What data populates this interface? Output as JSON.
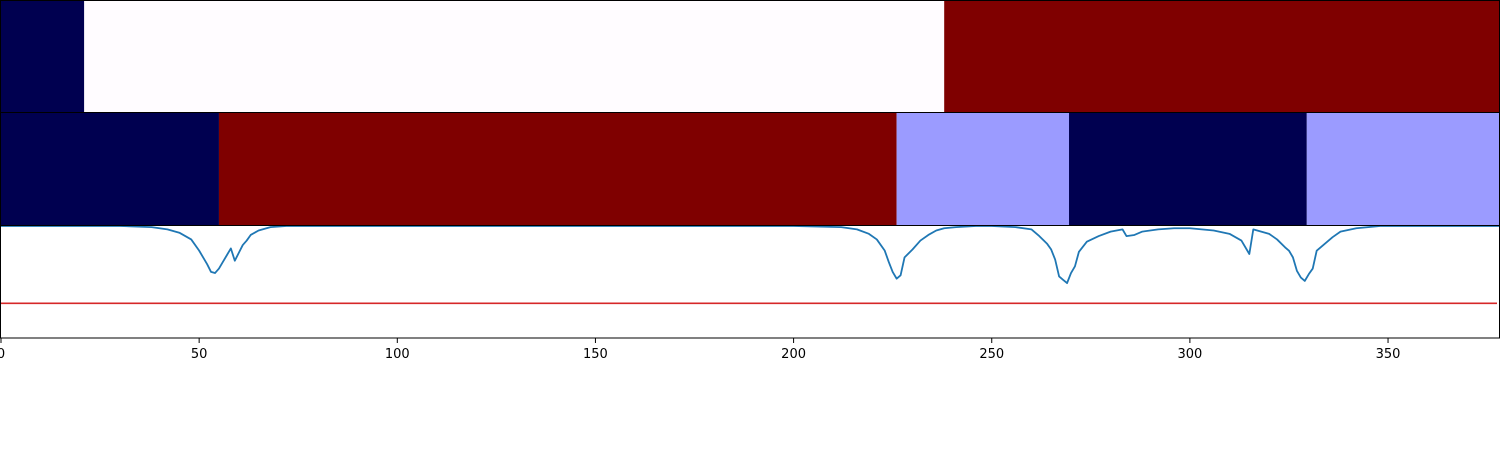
{
  "chart_data": {
    "type": "segmentation-timeline",
    "x_range": [
      0,
      378
    ],
    "x_ticks": [
      0,
      50,
      100,
      150,
      200,
      250,
      300,
      350
    ],
    "x_tick_labels": [
      "0",
      "50",
      "100",
      "150",
      "200",
      "250",
      "300",
      "350"
    ],
    "colors": {
      "dark_navy": "#000050",
      "dark_red": "#7f0000",
      "light_purple": "#9b9bff",
      "white": "#fffcff",
      "line_blue": "#1f77b4",
      "threshold_red": "#d62728"
    },
    "tracks": [
      {
        "segments": [
          {
            "start": 0,
            "end": 21,
            "color": "#000050"
          },
          {
            "start": 21,
            "end": 238,
            "color": "#fffcff"
          },
          {
            "start": 238,
            "end": 378,
            "color": "#7f0000"
          }
        ]
      },
      {
        "segments": [
          {
            "start": 0,
            "end": 55,
            "color": "#000050"
          },
          {
            "start": 55,
            "end": 226,
            "color": "#7f0000"
          },
          {
            "start": 226,
            "end": 269.5,
            "color": "#9b9bff"
          },
          {
            "start": 269.5,
            "end": 329.5,
            "color": "#000050"
          },
          {
            "start": 329.5,
            "end": 378,
            "color": "#9b9bff"
          }
        ]
      }
    ],
    "signal": {
      "y_range": [
        0,
        1
      ],
      "threshold": 0.31,
      "color": "#1f77b4",
      "points": [
        [
          0,
          1.0
        ],
        [
          30,
          1.0
        ],
        [
          38,
          0.99
        ],
        [
          42,
          0.97
        ],
        [
          45,
          0.94
        ],
        [
          48,
          0.88
        ],
        [
          50,
          0.78
        ],
        [
          52,
          0.66
        ],
        [
          53,
          0.59
        ],
        [
          54,
          0.58
        ],
        [
          55,
          0.62
        ],
        [
          56,
          0.68
        ],
        [
          57,
          0.74
        ],
        [
          58,
          0.8
        ],
        [
          59,
          0.69
        ],
        [
          60,
          0.76
        ],
        [
          61,
          0.83
        ],
        [
          62,
          0.87
        ],
        [
          63,
          0.92
        ],
        [
          65,
          0.96
        ],
        [
          68,
          0.99
        ],
        [
          72,
          1.0
        ],
        [
          200,
          1.0
        ],
        [
          212,
          0.99
        ],
        [
          216,
          0.97
        ],
        [
          219,
          0.93
        ],
        [
          221,
          0.88
        ],
        [
          223,
          0.78
        ],
        [
          224,
          0.68
        ],
        [
          225,
          0.59
        ],
        [
          226,
          0.53
        ],
        [
          227,
          0.56
        ],
        [
          228,
          0.72
        ],
        [
          230,
          0.79
        ],
        [
          232,
          0.87
        ],
        [
          234,
          0.92
        ],
        [
          236,
          0.96
        ],
        [
          238,
          0.98
        ],
        [
          241,
          0.99
        ],
        [
          246,
          1.0
        ],
        [
          250,
          1.0
        ],
        [
          256,
          0.99
        ],
        [
          260,
          0.97
        ],
        [
          262,
          0.91
        ],
        [
          264,
          0.84
        ],
        [
          265,
          0.79
        ],
        [
          266,
          0.7
        ],
        [
          267,
          0.55
        ],
        [
          268,
          0.52
        ],
        [
          269,
          0.49
        ],
        [
          270,
          0.58
        ],
        [
          271,
          0.64
        ],
        [
          272,
          0.77
        ],
        [
          274,
          0.86
        ],
        [
          277,
          0.91
        ],
        [
          280,
          0.95
        ],
        [
          283,
          0.97
        ],
        [
          284,
          0.91
        ],
        [
          286,
          0.92
        ],
        [
          288,
          0.95
        ],
        [
          292,
          0.97
        ],
        [
          296,
          0.98
        ],
        [
          300,
          0.98
        ],
        [
          306,
          0.96
        ],
        [
          310,
          0.93
        ],
        [
          313,
          0.87
        ],
        [
          315,
          0.75
        ],
        [
          316,
          0.97
        ],
        [
          318,
          0.95
        ],
        [
          320,
          0.93
        ],
        [
          322,
          0.88
        ],
        [
          324,
          0.81
        ],
        [
          325,
          0.78
        ],
        [
          326,
          0.72
        ],
        [
          327,
          0.6
        ],
        [
          328,
          0.54
        ],
        [
          329,
          0.51
        ],
        [
          330,
          0.57
        ],
        [
          331,
          0.62
        ],
        [
          332,
          0.78
        ],
        [
          334,
          0.84
        ],
        [
          336,
          0.9
        ],
        [
          338,
          0.95
        ],
        [
          342,
          0.98
        ],
        [
          348,
          1.0
        ],
        [
          378,
          1.0
        ]
      ]
    }
  }
}
